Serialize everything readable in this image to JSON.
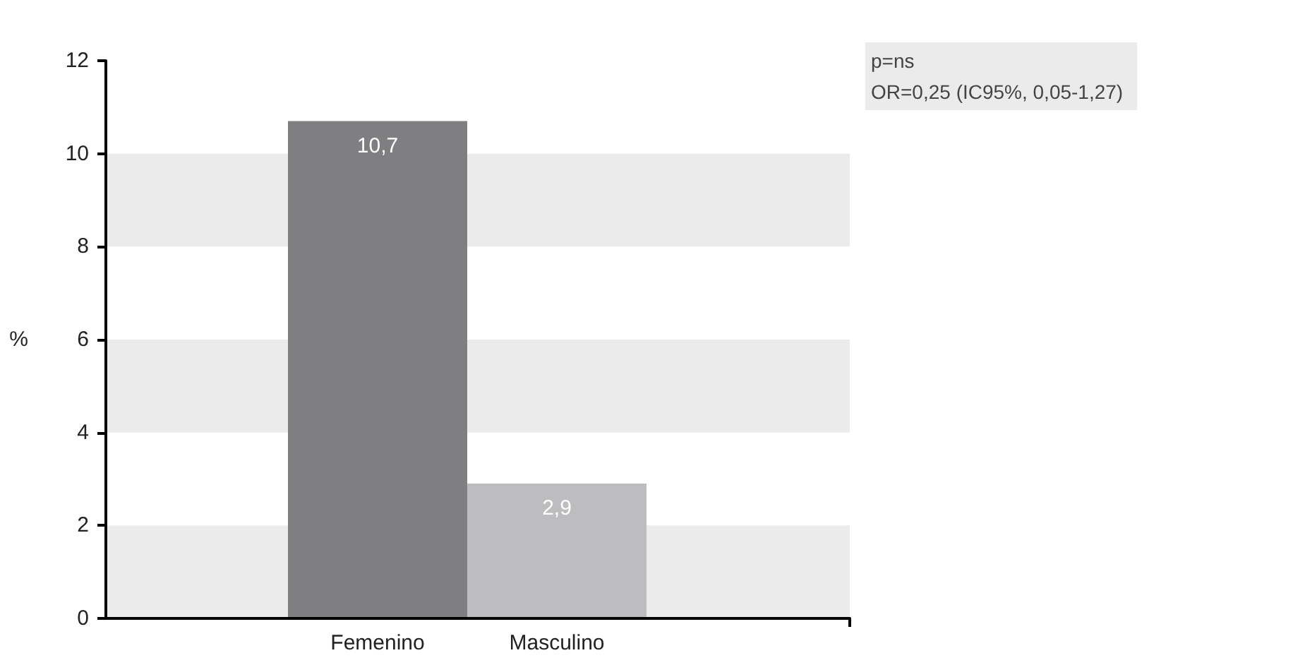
{
  "chart_data": {
    "type": "bar",
    "ylabel": "%",
    "categories": [
      "Femenino",
      "Masculino"
    ],
    "values": [
      10.7,
      2.9
    ],
    "colors": [
      "#7f7f82",
      "#bdbdbf"
    ],
    "value_labels": [
      "10,7",
      "2,9"
    ],
    "ylim": [
      0,
      12
    ],
    "yticks": [
      0,
      2,
      4,
      6,
      8,
      10,
      12
    ],
    "bands": [
      {
        "axis": "y",
        "from": 0,
        "to": 2,
        "color": "#ebebeb"
      },
      {
        "axis": "y",
        "from": 4,
        "to": 6,
        "color": "#ebebeb"
      },
      {
        "axis": "y",
        "from": 8,
        "to": 10,
        "color": "#ebebeb"
      }
    ],
    "annotations": [
      "p=ns",
      "OR=0,25 (IC95%, 0,05-1,27)"
    ]
  }
}
